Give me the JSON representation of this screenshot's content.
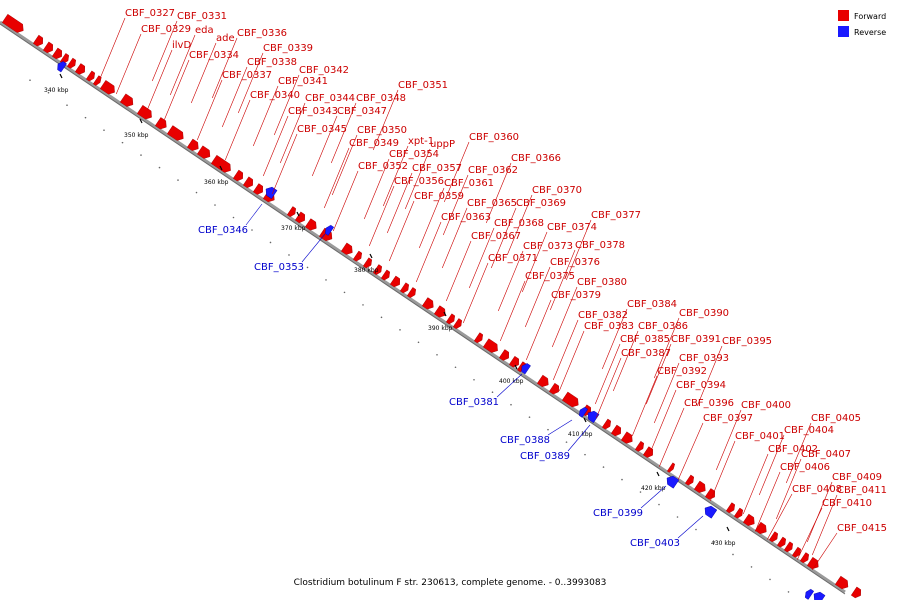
{
  "caption": "Clostridium botulinum F str. 230613, complete genome. - 0..3993083",
  "colors": {
    "forward": "#e80000",
    "reverse": "#1a1aff",
    "backbone": "#9a9a9a",
    "label_forward": "#cc0000",
    "label_reverse": "#0000cc"
  },
  "legend": [
    {
      "label": "Forward",
      "color": "#e80000"
    },
    {
      "label": "Reverse",
      "color": "#1a1aff"
    }
  ],
  "ticks": [
    "340 kbp",
    "350 kbp",
    "360 kbp",
    "370 kbp",
    "380 kbp",
    "390 kbp",
    "400 kbp",
    "410 kbp",
    "420 kbp",
    "430 kbp"
  ],
  "forward_labels": [
    "CBF_0327",
    "CBF_0329",
    "CBF_0331",
    "eda",
    "ilvD",
    "ade",
    "CBF_0334",
    "CBF_0336",
    "CBF_0338",
    "CBF_0339",
    "CBF_0337",
    "CBF_0341",
    "CBF_0342",
    "CBF_0340",
    "CBF_0344",
    "CBF_0348",
    "CBF_0351",
    "CBF_0343",
    "CBF_0347",
    "CBF_0345",
    "CBF_0350",
    "xpt-1",
    "uppP",
    "CBF_0360",
    "CBF_0349",
    "CBF_0354",
    "CBF_0357",
    "CBF_0366",
    "CBF_0352",
    "CBF_0362",
    "CBF_0356",
    "CBF_0361",
    "CBF_0370",
    "CBF_0359",
    "CBF_0365",
    "CBF_0369",
    "CBF_0363",
    "CBF_0377",
    "CBF_0368",
    "CBF_0374",
    "CBF_0367",
    "CBF_0373",
    "CBF_0378",
    "CBF_0371",
    "CBF_0376",
    "CBF_0375",
    "CBF_0380",
    "CBF_0379",
    "CBF_0384",
    "CBF_0382",
    "CBF_0390",
    "CBF_0383",
    "CBF_0386",
    "CBF_0385",
    "CBF_0391",
    "CBF_0395",
    "CBF_0387",
    "CBF_0393",
    "CBF_0392",
    "CBF_0394",
    "CBF_0396",
    "CBF_0400",
    "CBF_0397",
    "CBF_0405",
    "CBF_0404",
    "CBF_0401",
    "CBF_0402",
    "CBF_0407",
    "CBF_0406",
    "CBF_0409",
    "CBF_0408",
    "CBF_0411",
    "CBF_0410",
    "CBF_0415"
  ],
  "reverse_labels": [
    "CBF_0346",
    "CBF_0353",
    "CBF_0381",
    "CBF_0388",
    "CBF_0389",
    "CBF_0399",
    "CBF_0403"
  ]
}
